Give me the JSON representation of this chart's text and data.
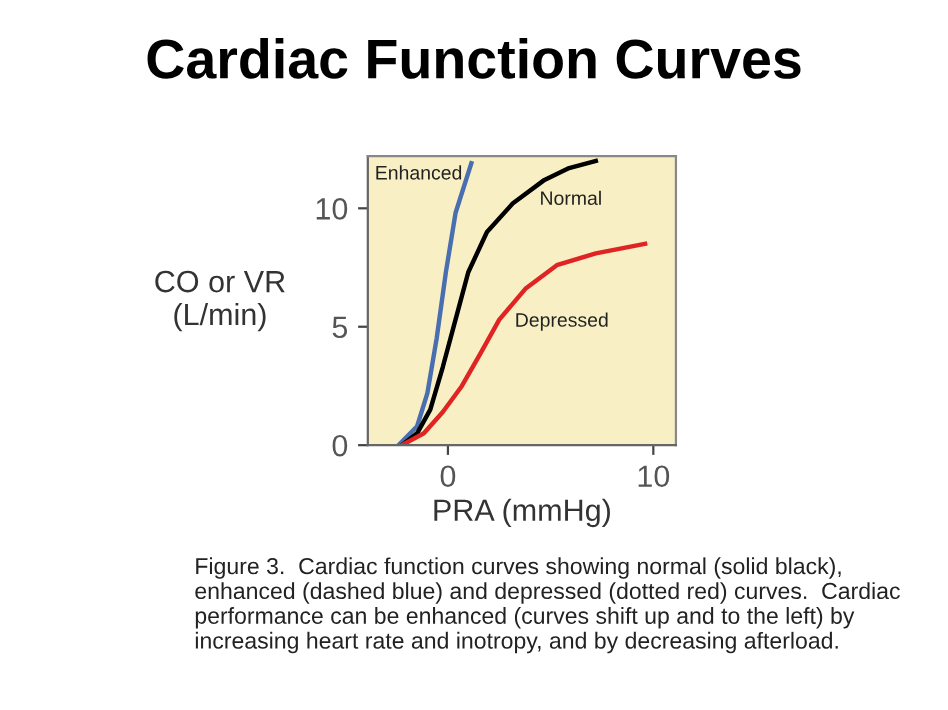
{
  "chart_data": {
    "type": "line",
    "title": "Cardiac Function Curves",
    "xlabel": "PRA (mmHg)",
    "ylabel": "CO or VR\n(L/min)",
    "xlim": [
      -3.9,
      11.1
    ],
    "ylim": [
      0,
      12.2
    ],
    "xticks": [
      0,
      10
    ],
    "yticks": [
      0,
      5,
      10
    ],
    "grid": false,
    "legend": false,
    "marker": "none",
    "line_style": "solid",
    "series": [
      {
        "name": "Enhanced",
        "color": "#4a6fb0",
        "x": [
          -2.4,
          -1.5,
          -1.0,
          -0.55,
          -0.1,
          0.37,
          1.14
        ],
        "values": [
          0,
          0.8,
          2.2,
          4.5,
          7.3,
          9.8,
          11.9
        ]
      },
      {
        "name": "Normal",
        "color": "#000000",
        "x": [
          -2.25,
          -1.5,
          -0.86,
          -0.25,
          0.37,
          0.99,
          1.9,
          3.15,
          4.7,
          5.9,
          7.2
        ],
        "values": [
          0,
          0.5,
          1.5,
          3.3,
          5.3,
          7.3,
          9.0,
          10.2,
          11.2,
          11.7,
          12.0
        ]
      },
      {
        "name": "Depressed",
        "color": "#e02424",
        "x": [
          -2.25,
          -1.17,
          -0.25,
          0.68,
          1.6,
          2.5,
          3.77,
          5.3,
          7.2,
          9.6
        ],
        "values": [
          0,
          0.5,
          1.4,
          2.5,
          3.9,
          5.3,
          6.6,
          7.6,
          8.1,
          8.5
        ]
      }
    ],
    "annotations": [
      "Figure 3.  Cardiac function curves showing normal (solid black), enhanced (dashed blue) and depressed (dotted red) curves.  Cardiac performance can be enhanced (curves shift up and to the left) by increasing heart rate and inotropy, and by decreasing afterload."
    ]
  }
}
